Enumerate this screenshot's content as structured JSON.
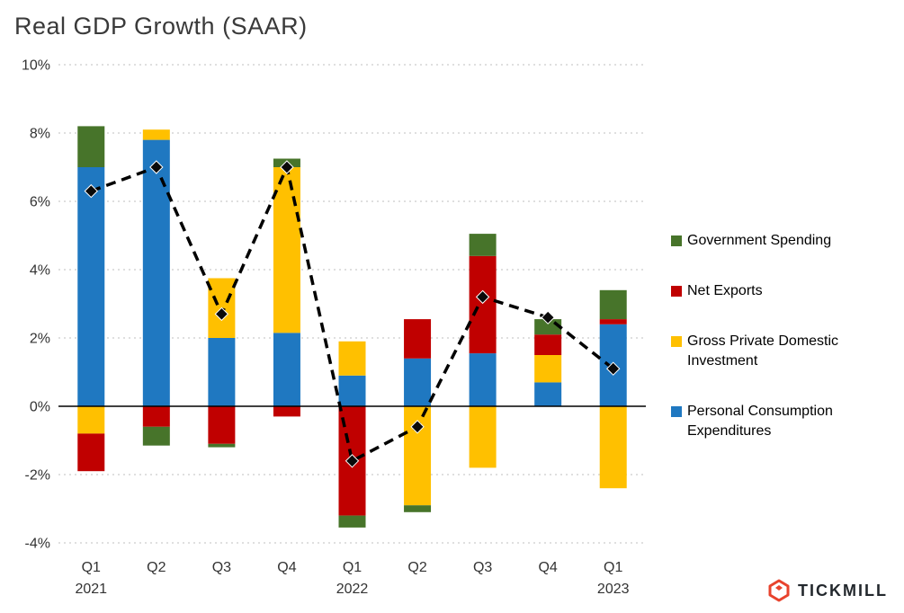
{
  "title": "Real GDP Growth (SAAR)",
  "brand": {
    "name": "TICKMILL",
    "accent_color": "#E8432D",
    "text_color": "#23282D"
  },
  "chart_data": {
    "type": "bar",
    "variant": "stacked-column-with-line",
    "title": "Real GDP Growth (SAAR)",
    "categories": [
      "Q1",
      "Q2",
      "Q3",
      "Q4",
      "Q1",
      "Q2",
      "Q3",
      "Q4",
      "Q1"
    ],
    "category_years": [
      "2021",
      "",
      "",
      "",
      "2022",
      "",
      "",
      "",
      "2023"
    ],
    "ylim": [
      -4,
      10
    ],
    "y_ticks": [
      -4,
      -2,
      0,
      2,
      4,
      6,
      8,
      10
    ],
    "y_tick_labels": [
      "-4%",
      "-2%",
      "0%",
      "2%",
      "4%",
      "6%",
      "8%",
      "10%"
    ],
    "grid": "dotted-horizontal",
    "legend_position": "right",
    "series": [
      {
        "name": "Personal Consumption Expenditures",
        "color": "#1F78C1",
        "values": [
          7.0,
          7.8,
          2.0,
          2.15,
          0.9,
          1.4,
          1.55,
          0.7,
          2.4
        ]
      },
      {
        "name": "Gross Private Domestic Investment",
        "color": "#FFC000",
        "values": [
          -0.8,
          0.3,
          1.75,
          4.85,
          1.0,
          -2.9,
          -1.8,
          0.8,
          -2.4
        ]
      },
      {
        "name": "Net Exports",
        "color": "#C00000",
        "values": [
          -1.1,
          -0.6,
          -1.1,
          -0.3,
          -3.2,
          1.15,
          2.85,
          0.6,
          0.15
        ]
      },
      {
        "name": "Government Spending",
        "color": "#47742A",
        "values": [
          1.2,
          -0.55,
          -0.1,
          0.25,
          -0.35,
          -0.2,
          0.65,
          0.45,
          0.85
        ]
      }
    ],
    "line_series": {
      "name": "Real GDP Growth (SAAR)",
      "color": "#000000",
      "style": "dashed",
      "marker": "diamond",
      "values": [
        6.3,
        7.0,
        2.7,
        7.0,
        -1.6,
        -0.6,
        3.2,
        2.6,
        1.1
      ]
    },
    "legend_order": [
      "Government Spending",
      "Net Exports",
      "Gross Private Domestic Investment",
      "Personal Consumption Expenditures"
    ]
  }
}
